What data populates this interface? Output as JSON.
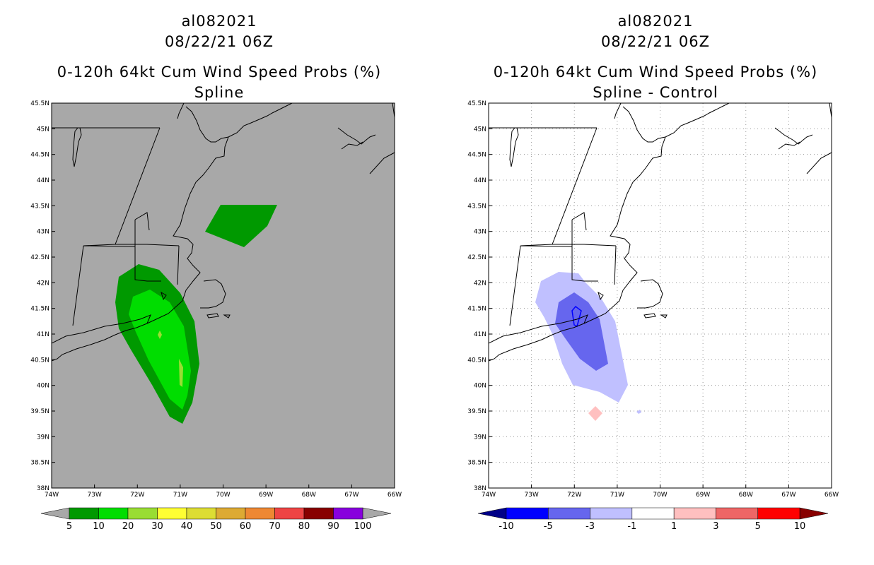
{
  "left_panel": {
    "title_lines": [
      "al082021",
      "08/22/21 06Z",
      "0-120h 64kt Cum Wind Speed Probs (%)",
      "Spline"
    ],
    "background": "#a8a8a8",
    "colorbar": {
      "colors": [
        "#009900",
        "#00dd00",
        "#99dd33",
        "#ffff33",
        "#dddd33",
        "#ddaa33",
        "#ee8833",
        "#ee4444",
        "#880000",
        "#8800dd"
      ],
      "labels": [
        "5",
        "10",
        "20",
        "30",
        "40",
        "50",
        "60",
        "70",
        "80",
        "90",
        "100"
      ],
      "end_arrow_color": "#a8a8a8"
    }
  },
  "right_panel": {
    "title_lines": [
      "al082021",
      "08/22/21 06Z",
      "0-120h 64kt Cum Wind Speed Probs (%)",
      "Spline - Control"
    ],
    "background": "#ffffff",
    "colorbar": {
      "colors": [
        "#0000ff",
        "#6666ee",
        "#c0c0ff",
        "#ffffff",
        "#ffc0c0",
        "#ee6666",
        "#ff0000"
      ],
      "labels": [
        "-10",
        "-5",
        "-3",
        "-1",
        "1",
        "3",
        "5",
        "10"
      ],
      "low_arrow_color": "#000088",
      "high_arrow_color": "#880000"
    }
  },
  "axes": {
    "lat_labels": [
      "45.5N",
      "45N",
      "44.5N",
      "44N",
      "43.5N",
      "43N",
      "42.5N",
      "42N",
      "41.5N",
      "41N",
      "40.5N",
      "40N",
      "39.5N",
      "39N",
      "38.5N",
      "38N"
    ],
    "lon_labels": [
      "74W",
      "73W",
      "72W",
      "71W",
      "70W",
      "69W",
      "68W",
      "67W",
      "66W"
    ]
  }
}
